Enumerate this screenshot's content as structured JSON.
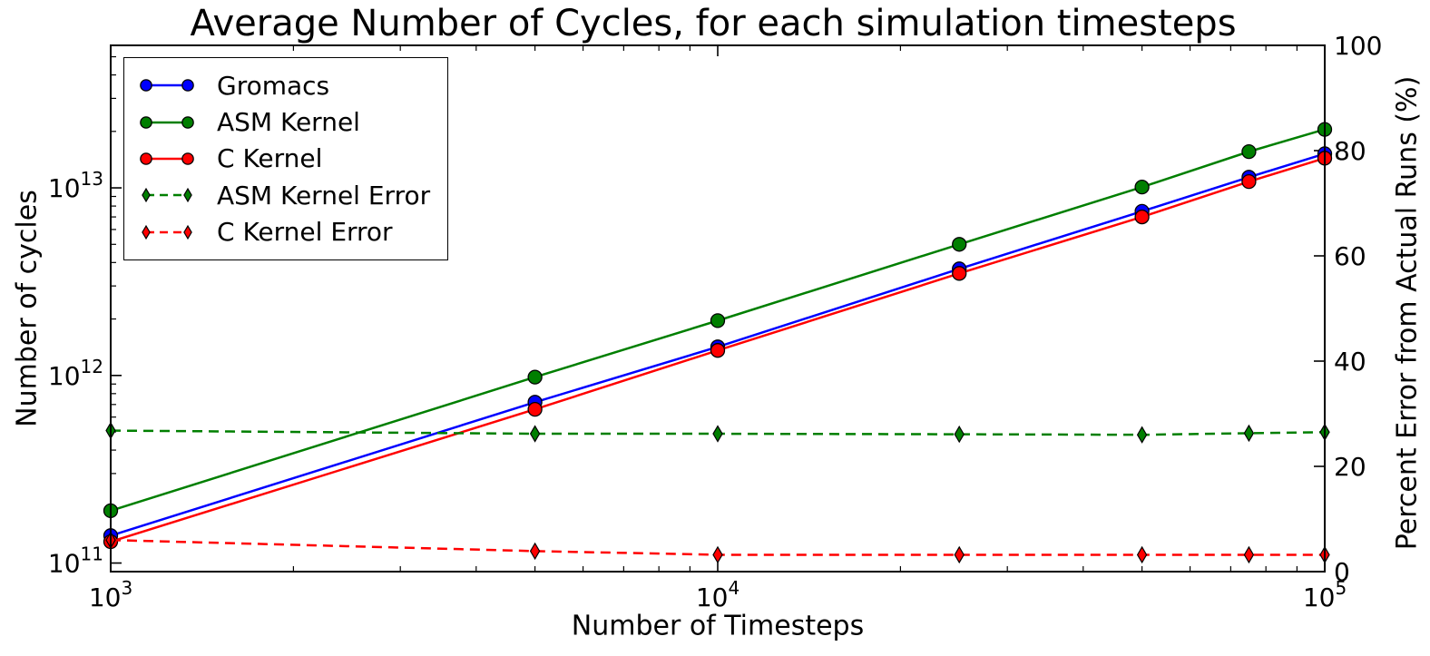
{
  "figure": {
    "background": "#ffffff",
    "text_color": "#000000"
  },
  "chart_data": {
    "type": "line",
    "title": "Average Number of Cycles, for each simulation timesteps",
    "xlabel": "Number of Timesteps",
    "ylabel_left": "Number of cycles",
    "ylabel_right": "Percent Error from Actual Runs (%)",
    "x_scale": "log",
    "y_scale_left": "log",
    "y_scale_right": "linear",
    "xlim": [
      1000,
      100000
    ],
    "ylim_left": [
      90000000000.0,
      57500000000000.0
    ],
    "ylim_right": [
      0,
      100
    ],
    "grid": false,
    "legend_position": "upper left",
    "x": [
      1000,
      5000,
      10000,
      25000,
      50000,
      75000,
      100000
    ],
    "series": [
      {
        "name": "Gromacs",
        "axis": "left",
        "color": "#0000ff",
        "marker": "circle",
        "linestyle": "solid",
        "values": [
          140000000000.0,
          720000000000.0,
          1420000000000.0,
          3700000000000.0,
          7500000000000.0,
          11400000000000.0,
          15200000000000.0
        ]
      },
      {
        "name": "ASM Kernel",
        "axis": "left",
        "color": "#007f00",
        "marker": "circle",
        "linestyle": "solid",
        "values": [
          190000000000.0,
          980000000000.0,
          1960000000000.0,
          5000000000000.0,
          10100000000000.0,
          15600000000000.0,
          20500000000000.0
        ]
      },
      {
        "name": "C Kernel",
        "axis": "left",
        "color": "#ff0000",
        "marker": "circle",
        "linestyle": "solid",
        "values": [
          130000000000.0,
          660000000000.0,
          1360000000000.0,
          3500000000000.0,
          7000000000000.0,
          10800000000000.0,
          14400000000000.0
        ]
      },
      {
        "name": "ASM Kernel Error",
        "axis": "right",
        "color": "#007f00",
        "marker": "diamond",
        "linestyle": "dashed",
        "values": [
          26.8,
          26.2,
          26.2,
          26.1,
          26.0,
          26.3,
          26.5
        ]
      },
      {
        "name": "C Kernel Error",
        "axis": "right",
        "color": "#ff0000",
        "marker": "diamond",
        "linestyle": "dashed",
        "values": [
          6.0,
          3.9,
          3.2,
          3.2,
          3.2,
          3.2,
          3.2
        ]
      }
    ],
    "xticks": {
      "values": [
        1000,
        10000,
        100000
      ],
      "labels": [
        "10^3",
        "10^4",
        "10^5"
      ]
    },
    "yticks_left": {
      "values": [
        100000000000.0,
        1000000000000.0,
        10000000000000.0
      ],
      "labels": [
        "10^11",
        "10^12",
        "10^13"
      ]
    },
    "yticks_right": {
      "values": [
        0,
        20,
        40,
        60,
        80,
        100
      ],
      "labels": [
        "0",
        "20",
        "40",
        "60",
        "80",
        "100"
      ]
    }
  }
}
